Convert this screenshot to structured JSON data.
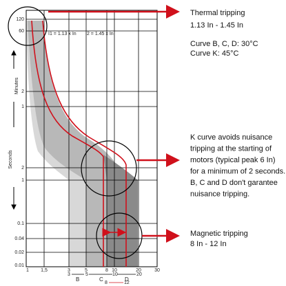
{
  "y_labels": [
    "120",
    "60",
    "2",
    "1",
    "2",
    "1",
    "0.1",
    "0.04",
    "0.02",
    "0.01"
  ],
  "unit_labels": {
    "minutes": "Minutes",
    "seconds": "Seconds"
  },
  "x_labels": [
    "1",
    "1,5",
    "3",
    "5",
    "8",
    "10",
    "20",
    "30"
  ],
  "thresholds": [
    "I1 = 1.13 x In",
    "I2 = 1.45 x In"
  ],
  "ranges": [
    {
      "from": "3",
      "to": "5",
      "label": "B"
    },
    {
      "from": "5",
      "to": "10",
      "label": "C"
    },
    {
      "from": "10",
      "to": "20",
      "label": "D"
    },
    {
      "from": "8",
      "to": "12"
    }
  ],
  "thermal": {
    "title": "Thermal tripping",
    "range": "1.13 In - 1.45 In",
    "temps": [
      "Curve B, C, D: 30°C",
      "Curve K: 45°C"
    ]
  },
  "k_curve": [
    "K curve avoids nuisance",
    "tripping at the starting of",
    "motors (typical peak 6 In)",
    "for a minimum of 2 seconds.",
    "B, C and D don't garantee",
    "nuisance tripping."
  ],
  "magnetic": {
    "title": "Magnetic tripping",
    "range": "8 In - 12 In"
  }
}
